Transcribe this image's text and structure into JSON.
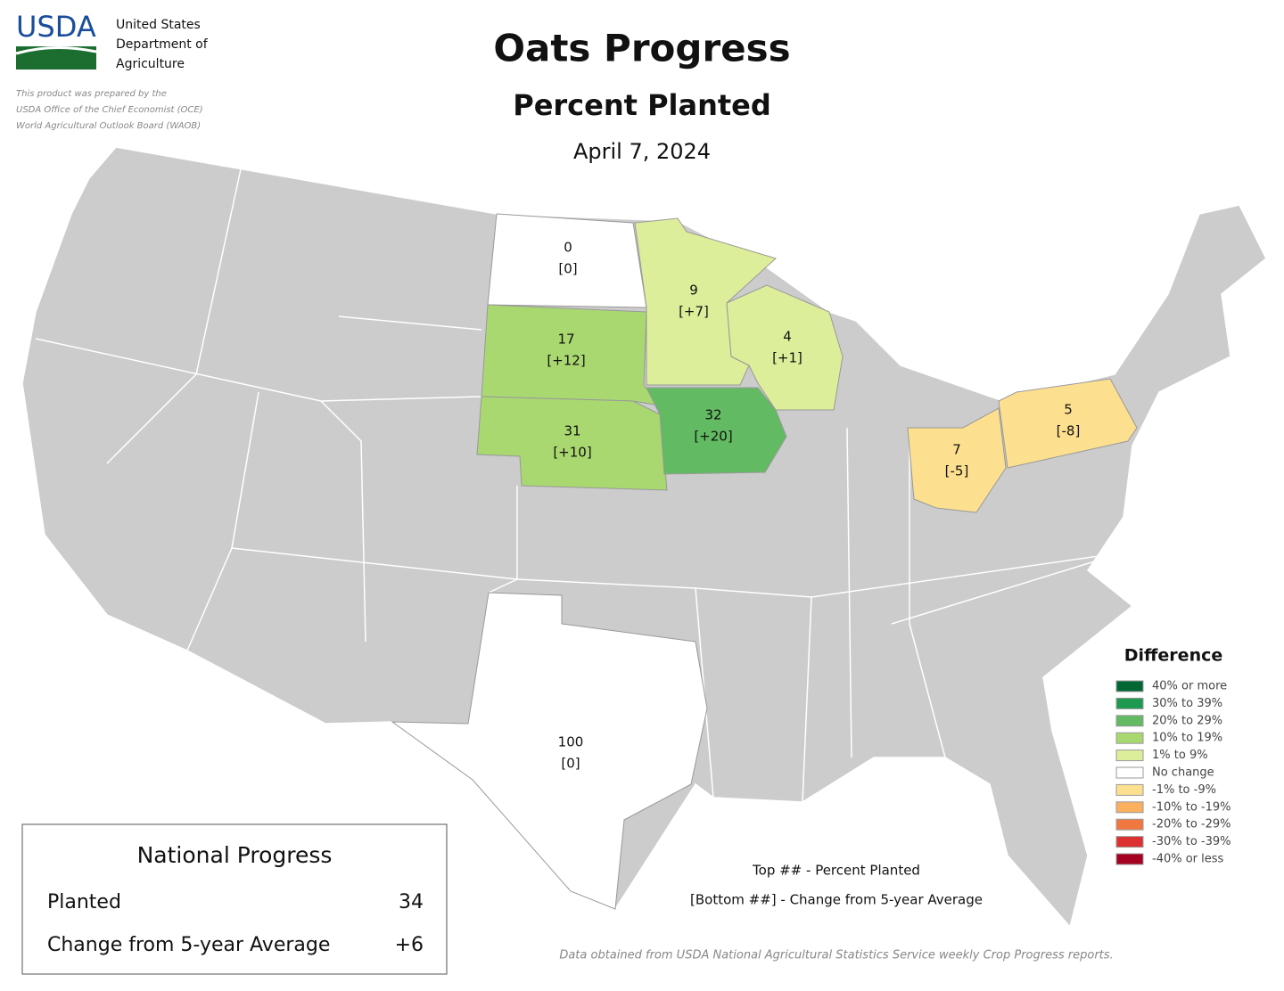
{
  "header": {
    "logo": "USDA",
    "agency": [
      "United States",
      "Department of",
      "Agriculture"
    ],
    "note": [
      "This product was prepared by the",
      "USDA Office of the Chief Economist (OCE)",
      "World Agricultural Outlook Board (WAOB)"
    ]
  },
  "title": "Oats Progress",
  "subtitle": "Percent Planted",
  "date": "April 7, 2024",
  "states": [
    {
      "planted": 0,
      "change": "[0]",
      "color": "#ffffff"
    },
    {
      "planted": 9,
      "change": "[+7]",
      "color": "#dcee9a"
    },
    {
      "planted": 17,
      "change": "[+12]",
      "color": "#a9d870"
    },
    {
      "planted": 4,
      "change": "[+1]",
      "color": "#dcee9a"
    },
    {
      "planted": 31,
      "change": "[+10]",
      "color": "#a9d870"
    },
    {
      "planted": 32,
      "change": "[+20]",
      "color": "#62bb62"
    },
    {
      "planted": 7,
      "change": "[-5]",
      "color": "#fde08f"
    },
    {
      "planted": 5,
      "change": "[-8]",
      "color": "#fde08f"
    },
    {
      "planted": 100,
      "change": "[0]",
      "color": "#ffffff"
    }
  ],
  "legend": {
    "title": "Difference",
    "items": [
      {
        "label": "40% or more",
        "color": "#006633"
      },
      {
        "label": "30% to 39%",
        "color": "#1e9a50"
      },
      {
        "label": "20% to 29%",
        "color": "#62bb62"
      },
      {
        "label": "10% to 19%",
        "color": "#a9d870"
      },
      {
        "label": "1% to 9%",
        "color": "#dcee9a"
      },
      {
        "label": "No change",
        "color": "#ffffff"
      },
      {
        "label": "-1% to -9%",
        "color": "#fde08f"
      },
      {
        "label": "-10% to -19%",
        "color": "#fbb060"
      },
      {
        "label": "-20% to -29%",
        "color": "#f07840"
      },
      {
        "label": "-30% to -39%",
        "color": "#dd3030"
      },
      {
        "label": "-40% or less",
        "color": "#a50020"
      }
    ]
  },
  "national": {
    "title": "National Progress",
    "rows": [
      [
        "Planted",
        "34"
      ],
      [
        "Change from 5-year Average",
        "+6"
      ]
    ]
  },
  "key": [
    "Top ## - Percent Planted",
    "[Bottom ##] - Change from 5-year Average"
  ],
  "source": "Data obtained from USDA National Agricultural Statistics Service weekly Crop Progress reports."
}
